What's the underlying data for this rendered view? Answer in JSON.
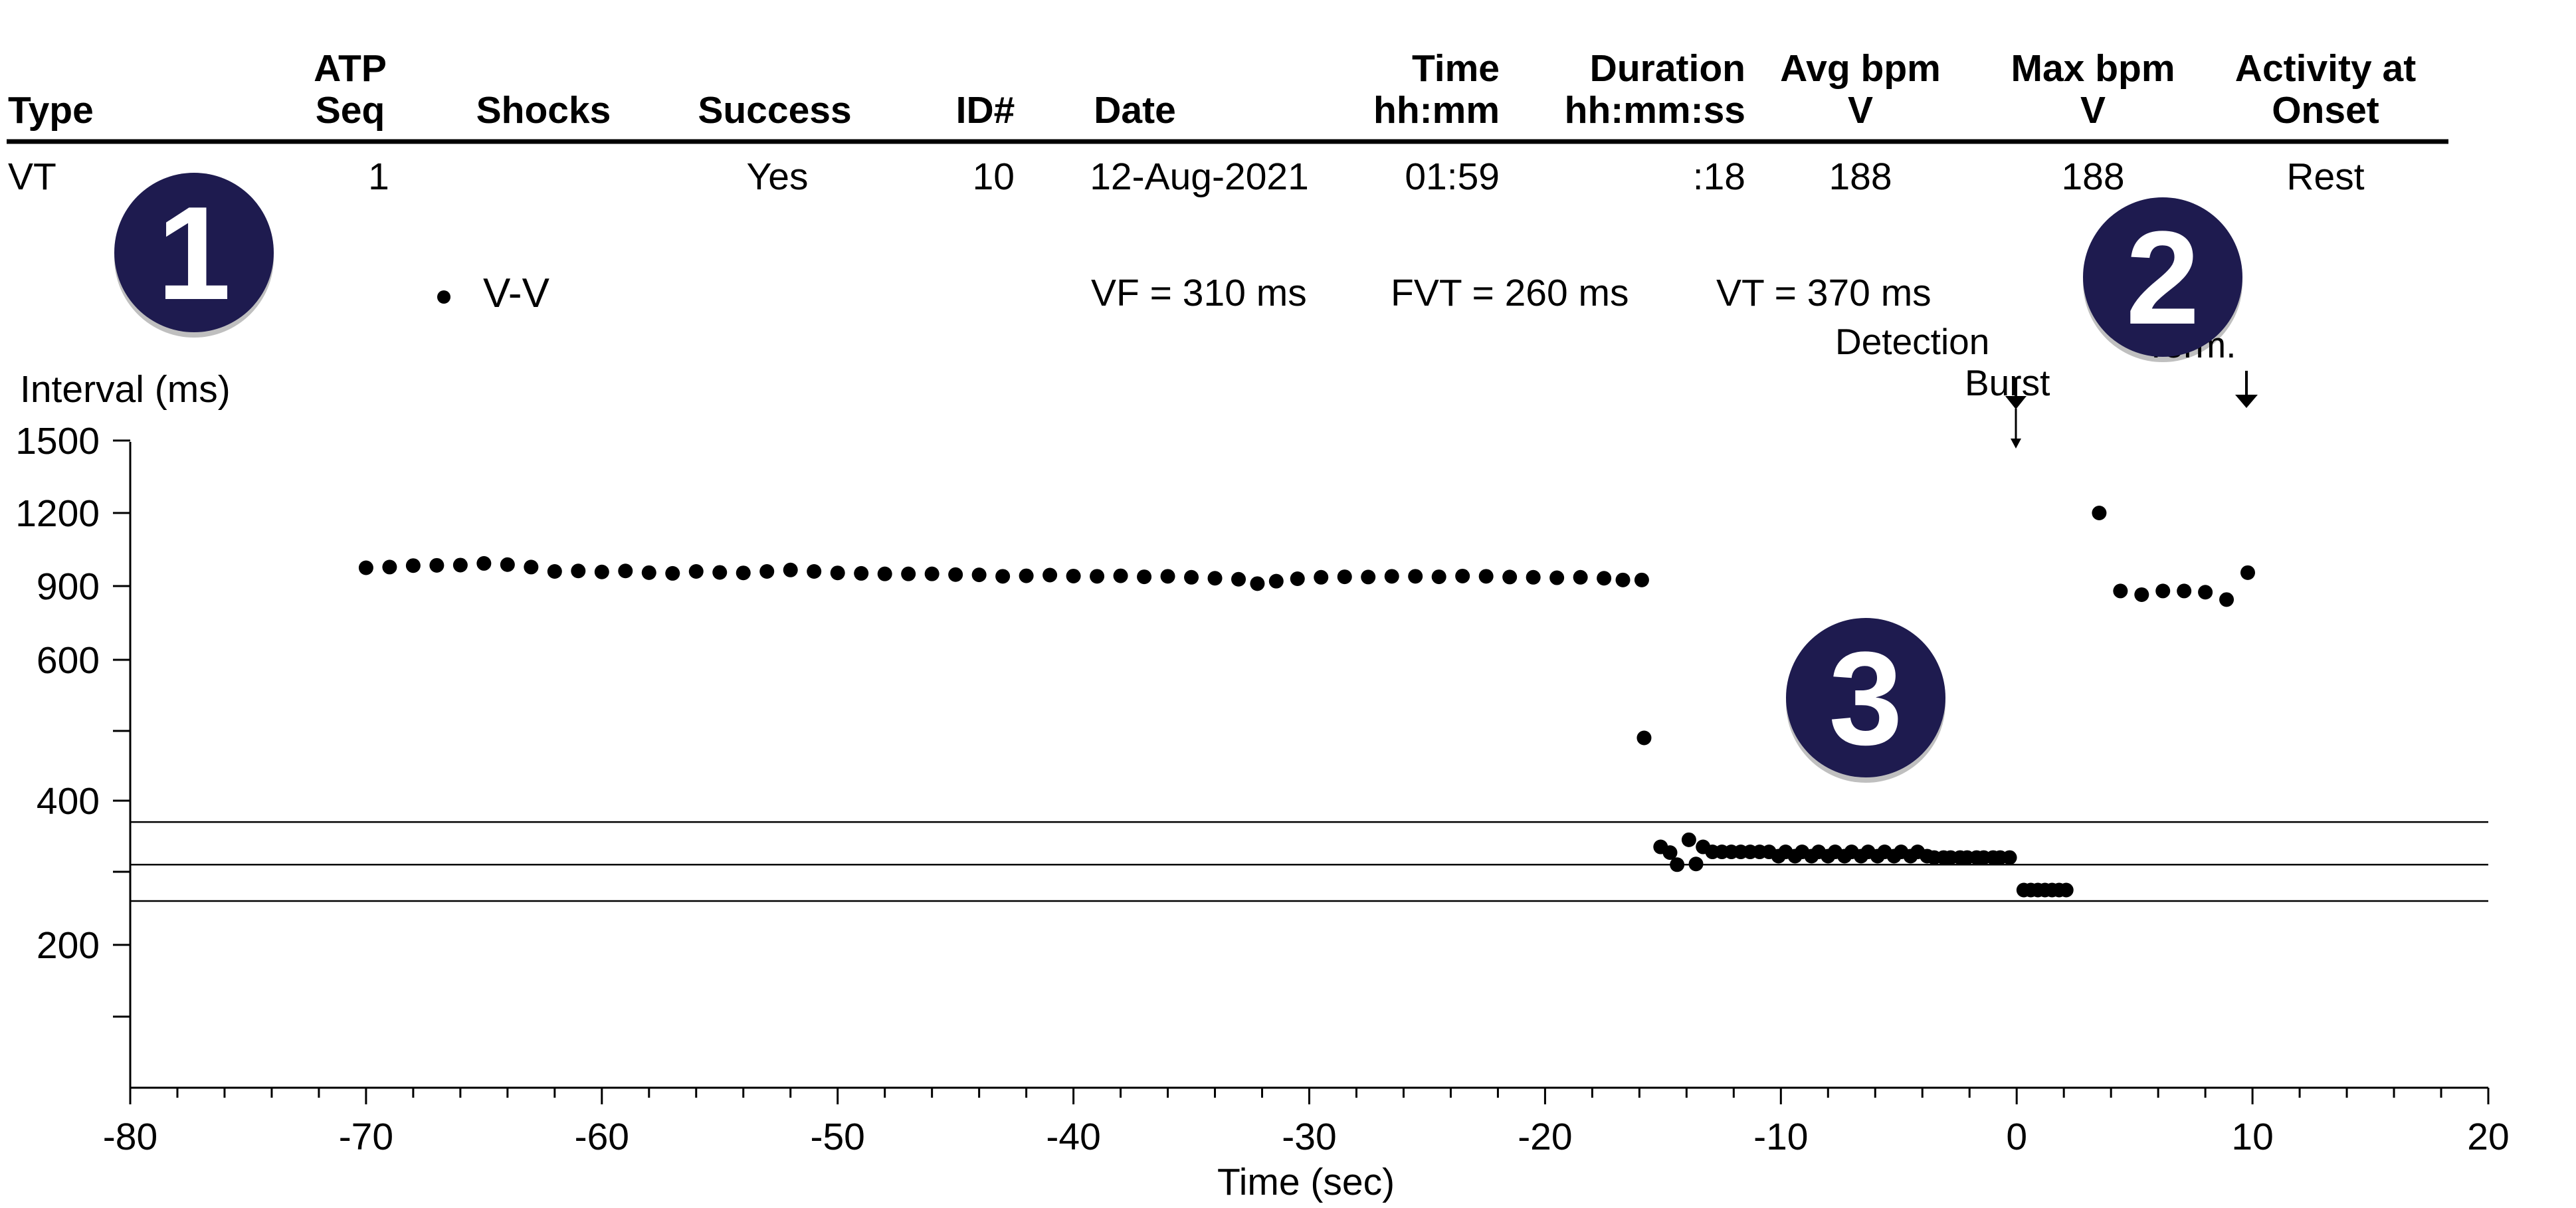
{
  "table": {
    "headers": [
      {
        "lines": [
          "Type"
        ]
      },
      {
        "lines": [
          "ATP",
          "Seq"
        ]
      },
      {
        "lines": [
          "Shocks"
        ]
      },
      {
        "lines": [
          "Success"
        ]
      },
      {
        "lines": [
          "ID#"
        ]
      },
      {
        "lines": [
          "Date"
        ]
      },
      {
        "lines": [
          "Time",
          "hh:mm"
        ]
      },
      {
        "lines": [
          "Duration",
          "hh:mm:ss"
        ]
      },
      {
        "lines": [
          "Avg bpm",
          "V"
        ]
      },
      {
        "lines": [
          "Max bpm",
          "V"
        ]
      },
      {
        "lines": [
          "Activity at",
          "Onset"
        ]
      }
    ],
    "rows": [
      [
        "VT",
        "1",
        "",
        "Yes",
        "10",
        "12-Aug-2021",
        "01:59",
        ":18",
        "188",
        "188",
        "Rest"
      ]
    ]
  },
  "badges": [
    "1",
    "2",
    "3"
  ],
  "badge_color": "#1e1b4f",
  "chart_data": {
    "type": "scatter",
    "legend": {
      "marker": "•",
      "label": "V-V"
    },
    "thresholds": [
      {
        "label": "VF = 310 ms",
        "value": 310
      },
      {
        "label": "FVT = 260 ms",
        "value": 260
      },
      {
        "label": "VT = 370 ms",
        "value": 370
      }
    ],
    "ylabel": "Interval (ms)",
    "xlabel": "Time (sec)",
    "y_tick_labels": [
      {
        "value": 1500,
        "label": "1500"
      },
      {
        "value": 1200,
        "label": "1200"
      },
      {
        "value": 900,
        "label": "900"
      },
      {
        "value": 600,
        "label": "600"
      },
      {
        "value": 500,
        "label": ""
      },
      {
        "value": 400,
        "label": "400"
      },
      {
        "value": 300,
        "label": ""
      },
      {
        "value": 200,
        "label": "200"
      },
      {
        "value": 150,
        "label": ""
      }
    ],
    "xlim": [
      -80,
      20
    ],
    "x_ticks": [
      -80,
      -70,
      -60,
      -50,
      -40,
      -30,
      -20,
      -10,
      0,
      10,
      20
    ],
    "annotations": [
      {
        "label": "Detection",
        "x": 0
      },
      {
        "label": "Burst",
        "x": 0
      },
      {
        "label": "Term.",
        "x": 10
      }
    ],
    "series": [
      {
        "name": "V-V",
        "points": [
          [
            -70,
            975
          ],
          [
            -69,
            978
          ],
          [
            -68,
            984
          ],
          [
            -67,
            985
          ],
          [
            -66,
            986
          ],
          [
            -65,
            993
          ],
          [
            -64,
            988
          ],
          [
            -63,
            978
          ],
          [
            -62,
            960
          ],
          [
            -61,
            962
          ],
          [
            -60,
            958
          ],
          [
            -59,
            962
          ],
          [
            -58,
            955
          ],
          [
            -57,
            952
          ],
          [
            -56,
            960
          ],
          [
            -55,
            956
          ],
          [
            -54,
            954
          ],
          [
            -53,
            960
          ],
          [
            -52,
            966
          ],
          [
            -51,
            960
          ],
          [
            -50,
            954
          ],
          [
            -49,
            952
          ],
          [
            -48,
            950
          ],
          [
            -47,
            950
          ],
          [
            -46,
            950
          ],
          [
            -45,
            947
          ],
          [
            -44,
            946
          ],
          [
            -43,
            940
          ],
          [
            -42,
            942
          ],
          [
            -41,
            945
          ],
          [
            -40,
            941
          ],
          [
            -39,
            940
          ],
          [
            -38,
            942
          ],
          [
            -37,
            938
          ],
          [
            -36,
            940
          ],
          [
            -35,
            936
          ],
          [
            -34,
            932
          ],
          [
            -33,
            928
          ],
          [
            -32.2,
            910
          ],
          [
            -31.4,
            920
          ],
          [
            -30.5,
            930
          ],
          [
            -29.5,
            936
          ],
          [
            -28.5,
            938
          ],
          [
            -27.5,
            937
          ],
          [
            -26.5,
            940
          ],
          [
            -25.5,
            940
          ],
          [
            -24.5,
            938
          ],
          [
            -23.5,
            941
          ],
          [
            -22.5,
            940
          ],
          [
            -21.5,
            937
          ],
          [
            -20.5,
            936
          ],
          [
            -19.5,
            934
          ],
          [
            -18.5,
            936
          ],
          [
            -17.5,
            932
          ],
          [
            -16.7,
            925
          ],
          [
            -15.9,
            925
          ],
          [
            -15.8,
            490
          ],
          [
            -15.1,
            335
          ],
          [
            -14.7,
            327
          ],
          [
            -14.4,
            310
          ],
          [
            -13.9,
            345
          ],
          [
            -13.6,
            311
          ],
          [
            -13.3,
            335
          ],
          [
            -12.9,
            328
          ],
          [
            -12.5,
            328
          ],
          [
            -12.1,
            328
          ],
          [
            -11.7,
            328
          ],
          [
            -11.3,
            328
          ],
          [
            -10.9,
            328
          ],
          [
            -10.5,
            328
          ],
          [
            -10.1,
            322
          ],
          [
            -9.8,
            328
          ],
          [
            -9.4,
            322
          ],
          [
            -9.1,
            328
          ],
          [
            -8.7,
            322
          ],
          [
            -8.4,
            328
          ],
          [
            -8.0,
            322
          ],
          [
            -7.7,
            328
          ],
          [
            -7.3,
            322
          ],
          [
            -7.0,
            328
          ],
          [
            -6.6,
            322
          ],
          [
            -6.3,
            328
          ],
          [
            -5.9,
            322
          ],
          [
            -5.6,
            328
          ],
          [
            -5.2,
            322
          ],
          [
            -4.9,
            328
          ],
          [
            -4.5,
            322
          ],
          [
            -4.2,
            328
          ],
          [
            -3.8,
            322
          ],
          [
            -3.5,
            320
          ],
          [
            -3.1,
            320
          ],
          [
            -2.8,
            320
          ],
          [
            -2.4,
            320
          ],
          [
            -2.1,
            320
          ],
          [
            -1.7,
            320
          ],
          [
            -1.4,
            320
          ],
          [
            -1.0,
            320
          ],
          [
            -0.7,
            320
          ],
          [
            -0.3,
            320
          ],
          [
            0.3,
            275
          ],
          [
            0.6,
            275
          ],
          [
            0.9,
            275
          ],
          [
            1.2,
            275
          ],
          [
            1.5,
            275
          ],
          [
            1.8,
            275
          ],
          [
            2.1,
            275
          ],
          [
            3.5,
            1200
          ],
          [
            4.4,
            880
          ],
          [
            5.3,
            865
          ],
          [
            6.2,
            880
          ],
          [
            7.1,
            880
          ],
          [
            8.0,
            875
          ],
          [
            8.9,
            845
          ],
          [
            9.8,
            955
          ]
        ]
      }
    ],
    "threshold_lines": [
      370,
      310,
      260
    ],
    "grid": false
  }
}
